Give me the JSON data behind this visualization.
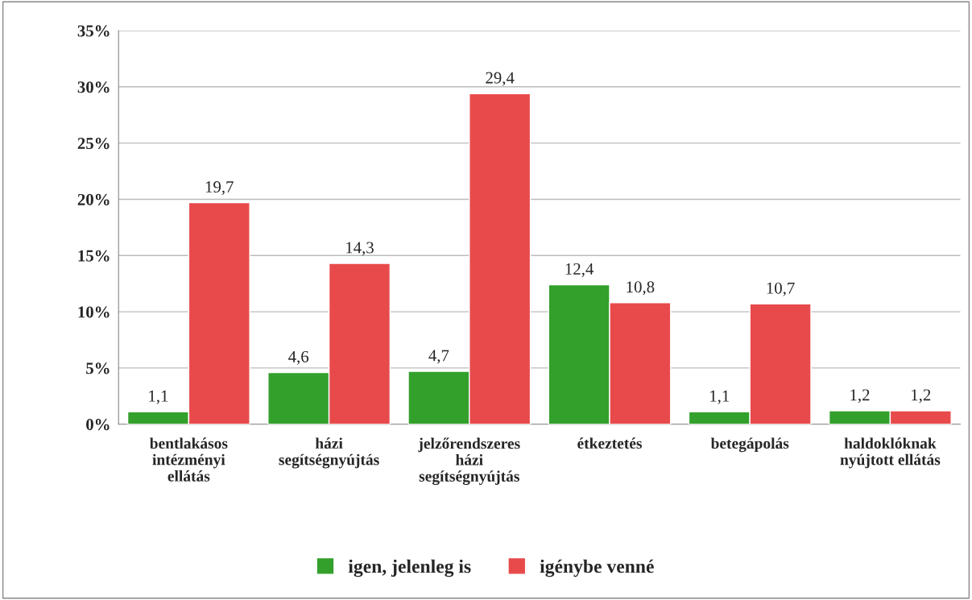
{
  "chart_data": {
    "type": "bar",
    "categories": [
      "bentlakásos\nintézményi\nellátás",
      "házi\nsegítségnyújtás",
      "jelzőrendszeres\nházi\nsegítségnyújtás",
      "étkeztetés",
      "betegápolás",
      "haldoklóknak\nnyújtott ellátás"
    ],
    "series": [
      {
        "name": "igen, jelenleg is",
        "color": "#33a02c",
        "values": [
          1.1,
          4.6,
          4.7,
          12.4,
          1.1,
          1.2
        ],
        "value_labels": [
          "1,1",
          "4,6",
          "4,7",
          "12,4",
          "1,1",
          "1,2"
        ]
      },
      {
        "name": "igénybe venné",
        "color": "#e84a4c",
        "values": [
          19.7,
          14.3,
          29.4,
          10.8,
          10.7,
          1.2
        ],
        "value_labels": [
          "19,7",
          "14,3",
          "29,4",
          "10,8",
          "10,7",
          "1,2"
        ]
      }
    ],
    "ylim": [
      0,
      35
    ],
    "yticks": [
      {
        "value": 0,
        "label": "0%"
      },
      {
        "value": 5,
        "label": "5%"
      },
      {
        "value": 10,
        "label": "10%"
      },
      {
        "value": 15,
        "label": "15%"
      },
      {
        "value": 20,
        "label": "20%"
      },
      {
        "value": 25,
        "label": "25%"
      },
      {
        "value": 30,
        "label": "30%"
      },
      {
        "value": 35,
        "label": "35%"
      }
    ],
    "grid": "y",
    "legend": "bottom"
  }
}
